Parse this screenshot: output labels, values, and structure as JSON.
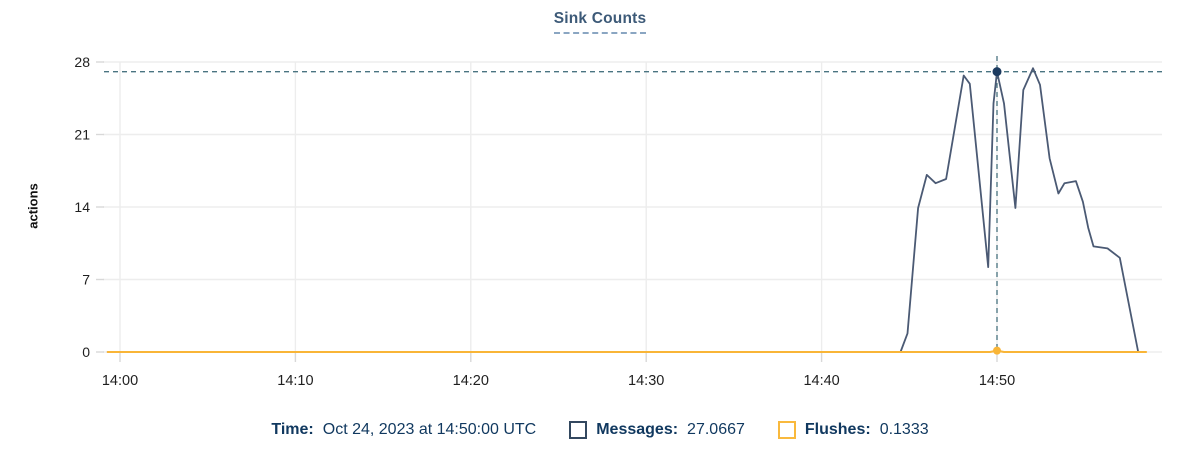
{
  "chart": {
    "title": "Sink Counts",
    "ylabel": "actions"
  },
  "chart_data": {
    "type": "line",
    "title": "Sink Counts",
    "xlabel": "",
    "ylabel": "actions",
    "x_unit": "time (UTC), minutes after 14:00",
    "xlim": [
      -0.7,
      59.4
    ],
    "ylim": [
      0,
      28
    ],
    "grid": true,
    "legend_position": "bottom",
    "x_ticks": [
      {
        "minutes": 0,
        "label": "14:00"
      },
      {
        "minutes": 10,
        "label": "14:10"
      },
      {
        "minutes": 20,
        "label": "14:20"
      },
      {
        "minutes": 30,
        "label": "14:30"
      },
      {
        "minutes": 40,
        "label": "14:40"
      },
      {
        "minutes": 50,
        "label": "14:50"
      }
    ],
    "y_ticks": [
      0,
      7,
      14,
      21,
      28
    ],
    "series": [
      {
        "name": "Messages",
        "color": "#4b5a74",
        "width": 1.8,
        "points": [
          [
            -0.7,
            0
          ],
          [
            44.5,
            0
          ],
          [
            44.9,
            1.8
          ],
          [
            45.5,
            13.9
          ],
          [
            46.0,
            17.1
          ],
          [
            46.5,
            16.3
          ],
          [
            47.1,
            16.7
          ],
          [
            48.1,
            26.7
          ],
          [
            48.45,
            25.9
          ],
          [
            49.5,
            8.2
          ],
          [
            49.8,
            24.0
          ],
          [
            50.0,
            27.0667
          ],
          [
            50.4,
            24.0
          ],
          [
            51.05,
            13.9
          ],
          [
            51.5,
            25.3
          ],
          [
            52.05,
            27.4
          ],
          [
            52.45,
            25.8
          ],
          [
            53.0,
            18.7
          ],
          [
            53.5,
            15.3
          ],
          [
            53.85,
            16.3
          ],
          [
            54.5,
            16.5
          ],
          [
            54.9,
            14.5
          ],
          [
            55.2,
            12.0
          ],
          [
            55.5,
            10.2
          ],
          [
            56.3,
            10.0
          ],
          [
            57.0,
            9.1
          ],
          [
            58.05,
            0
          ]
        ]
      },
      {
        "name": "Flushes",
        "color": "#f9b537",
        "width": 2,
        "points": [
          [
            -0.7,
            0
          ],
          [
            49.6,
            0
          ],
          [
            50.0,
            0.1333
          ],
          [
            50.4,
            0
          ],
          [
            58.5,
            0
          ]
        ]
      }
    ],
    "crosshair": {
      "x_minutes": 50,
      "x_time": "14:50:00",
      "y_value": 27.0667,
      "dots": [
        {
          "series": "Messages",
          "value": 27.0667,
          "color": "#1c3a5f",
          "r": 4.5
        },
        {
          "series": "Flushes",
          "value": 0.1333,
          "color": "#f9b537",
          "r": 4
        }
      ]
    }
  },
  "tooltip": {
    "time_label": "Time:",
    "time_value": "Oct 24, 2023 at 14:50:00 UTC",
    "messages_label": "Messages:",
    "messages_value": "27.0667",
    "flushes_label": "Flushes:",
    "flushes_value": "0.1333"
  },
  "colors": {
    "grid": "#ededed",
    "tick": "#d8d8d8",
    "axis_text": "#1f1f1f",
    "crosshair": "#4a7481",
    "title": "#3d5a78",
    "legend_text": "#10385f",
    "messages": "#4b5a74",
    "flushes": "#f9b537"
  }
}
